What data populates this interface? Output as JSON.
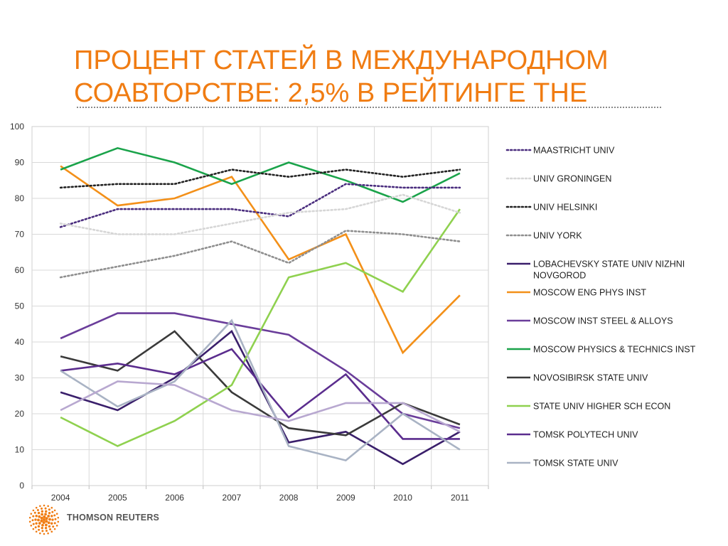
{
  "slide": {
    "title": "ПРОЦЕНТ СТАТЕЙ В МЕЖДУНАРОДНОМ СОАВТОРСТВЕ: 2,5% В РЕЙТИНГЕ THE",
    "accent_color": "#f07c12"
  },
  "logo": {
    "text": "THOMSON REUTERS",
    "icon": "thomson-reuters-dot-logo-icon"
  },
  "chart_data": {
    "type": "line",
    "title": "",
    "xlabel": "",
    "ylabel": "",
    "ylim": [
      0,
      100
    ],
    "yticks": [
      0,
      10,
      20,
      30,
      40,
      50,
      60,
      70,
      80,
      90,
      100
    ],
    "grid": true,
    "legend_position": "right",
    "categories": [
      "2004",
      "2005",
      "2006",
      "2007",
      "2008",
      "2009",
      "2010",
      "2011"
    ],
    "series": [
      {
        "name": "MAASTRICHT UNIV",
        "color": "#4a2d7e",
        "style": "dotted",
        "values": [
          72,
          77,
          77,
          77,
          75,
          84,
          83,
          83
        ]
      },
      {
        "name": "UNIV GRONINGEN",
        "color": "#d6d6d6",
        "style": "dotted",
        "values": [
          73,
          70,
          70,
          73,
          76,
          77,
          81,
          76
        ]
      },
      {
        "name": "UNIV HELSINKI",
        "color": "#222222",
        "style": "dotted",
        "values": [
          83,
          84,
          84,
          88,
          86,
          88,
          86,
          88
        ]
      },
      {
        "name": "UNIV YORK",
        "color": "#8e8e8e",
        "style": "dotted",
        "values": [
          58,
          61,
          64,
          68,
          62,
          71,
          70,
          68
        ]
      },
      {
        "name": "LOBACHEVSKY STATE UNIV NIZHNI NOVGOROD",
        "color": "#3a1f6b",
        "style": "solid",
        "values": [
          26,
          21,
          30,
          43,
          12,
          15,
          6,
          15
        ]
      },
      {
        "name": "MOSCOW ENG PHYS INST",
        "color": "#f39019",
        "style": "solid",
        "values": [
          89,
          78,
          80,
          86,
          63,
          70,
          37,
          53
        ]
      },
      {
        "name": "MOSCOW INST STEEL & ALLOYS",
        "color": "#6a3d9a",
        "style": "solid",
        "values": [
          41,
          48,
          48,
          45,
          42,
          32,
          20,
          16
        ]
      },
      {
        "name": "MOSCOW PHYSICS & TECHNICS INST",
        "color": "#1aa34a",
        "style": "solid",
        "values": [
          88,
          94,
          90,
          84,
          90,
          85,
          79,
          87
        ]
      },
      {
        "name": "NOVOSIBIRSK STATE UNIV",
        "color": "#3a3a3a",
        "style": "solid",
        "values": [
          36,
          32,
          43,
          26,
          16,
          14,
          23,
          17
        ]
      },
      {
        "name": "STATE UNIV HIGHER SCH ECON",
        "color": "#8fd14f",
        "style": "solid",
        "values": [
          19,
          11,
          18,
          28,
          58,
          62,
          54,
          77
        ]
      },
      {
        "name": "TOMSK POLYTECH UNIV",
        "color": "#5b2d8e",
        "style": "solid",
        "values": [
          32,
          34,
          31,
          38,
          19,
          31,
          13,
          13
        ]
      },
      {
        "name": "TOMSK STATE UNIV",
        "color": "#a9b3c4",
        "style": "solid",
        "values": [
          32,
          22,
          29,
          46,
          11,
          7,
          20,
          10
        ]
      },
      {
        "name": "",
        "color": "#b8a8d0",
        "style": "solid",
        "values": [
          21,
          29,
          28,
          21,
          18,
          23,
          23,
          15
        ]
      }
    ]
  }
}
